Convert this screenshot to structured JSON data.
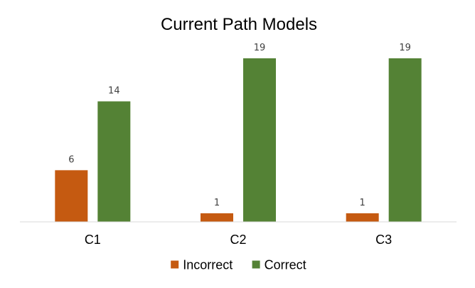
{
  "chart_data": {
    "type": "bar",
    "title": "Current Path Models",
    "categories": [
      "C1",
      "C2",
      "C3"
    ],
    "series": [
      {
        "name": "Incorrect",
        "values": [
          6,
          1,
          1
        ],
        "color": "#c55a11"
      },
      {
        "name": "Correct",
        "values": [
          14,
          19,
          19
        ],
        "color": "#548235"
      }
    ],
    "data_labels": true,
    "ylim": [
      0,
      19
    ],
    "grid": false,
    "y_axis_visible": false,
    "legend_position": "bottom"
  }
}
